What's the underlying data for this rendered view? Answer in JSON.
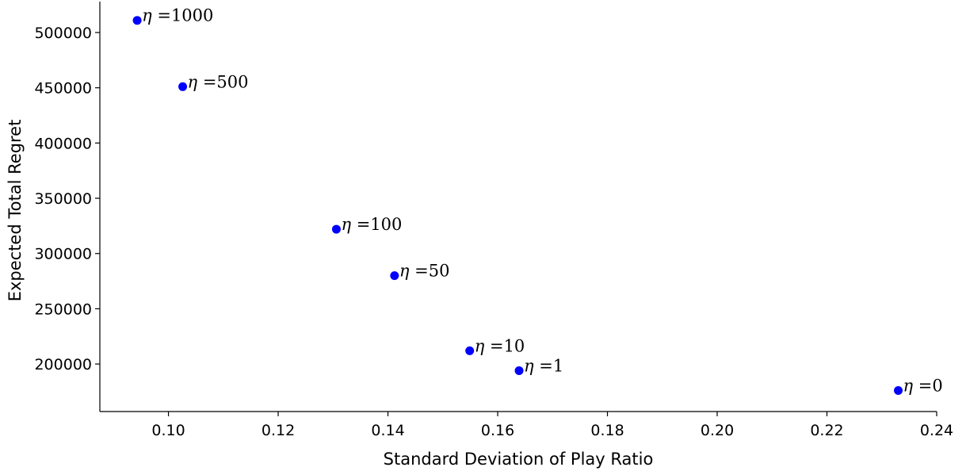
{
  "chart_data": {
    "type": "scatter",
    "title": "",
    "xlabel": "Standard Deviation of Play Ratio",
    "ylabel": "Expected Total Regret",
    "xlim": [
      0.0875,
      0.24
    ],
    "ylim": [
      157000,
      528000
    ],
    "xticks": [
      0.1,
      0.12,
      0.14,
      0.16,
      0.18,
      0.2,
      0.22,
      0.24
    ],
    "xtick_labels": [
      "0.10",
      "0.12",
      "0.14",
      "0.16",
      "0.18",
      "0.20",
      "0.22",
      "0.24"
    ],
    "yticks": [
      200000,
      250000,
      300000,
      350000,
      400000,
      450000,
      500000
    ],
    "ytick_labels": [
      "200000",
      "250000",
      "300000",
      "350000",
      "400000",
      "450000",
      "500000"
    ],
    "grid": false,
    "point_color": "#0000ff",
    "points": [
      {
        "x": 0.0943,
        "y": 511000,
        "eta_symbol": "η",
        "label": " =1000"
      },
      {
        "x": 0.1026,
        "y": 451000,
        "eta_symbol": "η",
        "label": " =500"
      },
      {
        "x": 0.1306,
        "y": 322000,
        "eta_symbol": "η",
        "label": " =100"
      },
      {
        "x": 0.1412,
        "y": 280000,
        "eta_symbol": "η",
        "label": " =50"
      },
      {
        "x": 0.1549,
        "y": 212000,
        "eta_symbol": "η",
        "label": " =10"
      },
      {
        "x": 0.1639,
        "y": 194000,
        "eta_symbol": "η",
        "label": " =1"
      },
      {
        "x": 0.233,
        "y": 176000,
        "eta_symbol": "η",
        "label": " =0"
      }
    ]
  }
}
